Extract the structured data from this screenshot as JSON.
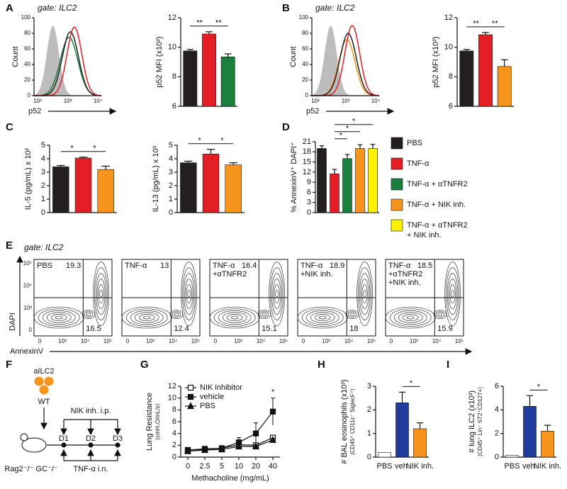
{
  "panels": {
    "letters": [
      "A",
      "B",
      "C",
      "D",
      "E",
      "F",
      "G",
      "H",
      "I"
    ],
    "gate": "gate: ILC2",
    "hist": {
      "ylabel": "Count",
      "xlabel": "p52",
      "yticks": [
        "0",
        "20",
        "40",
        "60",
        "80",
        "100"
      ],
      "xticks": [
        "10²",
        "10³",
        "10⁴"
      ]
    },
    "legend": [
      {
        "label": [
          "PBS"
        ],
        "color": "#231f20"
      },
      {
        "label": [
          "TNF-α"
        ],
        "color": "#e31e24"
      },
      {
        "label": [
          "TNF-α + αTNFR2"
        ],
        "color": "#1b7f3e"
      },
      {
        "label": [
          "TNF-α + NIK inh."
        ],
        "color": "#f7941d"
      },
      {
        "label": [
          "TNF-α + αTNFR2",
          "+ NIK inh."
        ],
        "color": "#fff200"
      }
    ],
    "flow": {
      "ylabel": "DAPI",
      "xlabel": "AnnexinV",
      "yticks": [
        "0",
        "10³",
        "10⁴",
        "10⁵"
      ],
      "xticks": [
        "0",
        "10³",
        "10⁴",
        "10⁵"
      ],
      "plots": [
        {
          "label": [
            "PBS"
          ],
          "ur": "19.3",
          "lr": "16.5"
        },
        {
          "label": [
            "TNF-α"
          ],
          "ur": "13",
          "lr": "12.4"
        },
        {
          "label": [
            "TNF-α",
            "+αTNFR2"
          ],
          "ur": "16.4",
          "lr": "15.1"
        },
        {
          "label": [
            "TNF-α",
            "+NIK inh."
          ],
          "ur": "18.9",
          "lr": "18"
        },
        {
          "label": [
            "TNF-α",
            "+αTNFR2",
            "+NIK inh."
          ],
          "ur": "18.5",
          "lr": "15.9"
        }
      ]
    },
    "schematic": {
      "cells": "aILC2",
      "donor": "WT",
      "ip": "NIK inh. i.p.",
      "days": [
        "D1",
        "D2",
        "D3"
      ],
      "host": "Rag2⁻/⁻ GC⁻/⁻",
      "in": "TNF-α i.n."
    }
  },
  "chart_data": [
    {
      "type": "bar",
      "ylabel": [
        "p52 MFI (x10²)"
      ],
      "values": [
        9.75,
        10.9,
        9.35
      ],
      "errors": [
        0.1,
        0.15,
        0.2
      ],
      "colors": [
        "#231f20",
        "#e31e24",
        "#1b7f3e"
      ],
      "ylim": [
        6,
        12
      ],
      "yticks": [
        6,
        8,
        10,
        12
      ],
      "comparisons": [
        {
          "pair": [
            0,
            1
          ],
          "label": "**"
        },
        {
          "pair": [
            1,
            2
          ],
          "label": "**"
        }
      ]
    },
    {
      "type": "bar",
      "ylabel": [
        "p52 MFI (x10²)"
      ],
      "values": [
        9.75,
        10.85,
        8.7
      ],
      "errors": [
        0.1,
        0.15,
        0.45
      ],
      "colors": [
        "#231f20",
        "#e31e24",
        "#f7941d"
      ],
      "ylim": [
        6,
        12
      ],
      "yticks": [
        6,
        8,
        10,
        12
      ],
      "comparisons": [
        {
          "pair": [
            0,
            1
          ],
          "label": "**"
        },
        {
          "pair": [
            1,
            2
          ],
          "label": "**"
        }
      ]
    },
    {
      "type": "bar",
      "ylabel": [
        "IL-5 (pg/mL) x 10²"
      ],
      "values": [
        3.4,
        4.05,
        3.2
      ],
      "errors": [
        0.1,
        0.07,
        0.25
      ],
      "colors": [
        "#231f20",
        "#e31e24",
        "#f7941d"
      ],
      "ylim": [
        0,
        5
      ],
      "yticks": [
        0,
        1,
        2,
        3,
        4,
        5
      ],
      "comparisons": [
        {
          "pair": [
            0,
            1
          ],
          "label": "*"
        },
        {
          "pair": [
            1,
            2
          ],
          "label": "*"
        }
      ]
    },
    {
      "type": "bar",
      "ylabel": [
        "IL-13 (pg/mL) x 10²"
      ],
      "values": [
        3.7,
        4.35,
        3.55
      ],
      "errors": [
        0.12,
        0.35,
        0.15
      ],
      "colors": [
        "#231f20",
        "#e31e24",
        "#f7941d"
      ],
      "ylim": [
        0,
        5
      ],
      "yticks": [
        0,
        1,
        2,
        3,
        4,
        5
      ],
      "comparisons": [
        {
          "pair": [
            0,
            1
          ],
          "label": "*"
        },
        {
          "pair": [
            1,
            2
          ],
          "label": "*"
        }
      ]
    },
    {
      "type": "bar",
      "ylabel": [
        "% AnnexinV⁺ DAPI⁺"
      ],
      "values": [
        19,
        11.5,
        16,
        19,
        19
      ],
      "errors": [
        0.8,
        1.3,
        1.2,
        1.1,
        1.2
      ],
      "colors": [
        "#231f20",
        "#e31e24",
        "#1b7f3e",
        "#f7941d",
        "#fff200"
      ],
      "ylim": [
        0,
        21
      ],
      "yticks": [
        0,
        3,
        6,
        9,
        12,
        15,
        18,
        21
      ],
      "comparisons": [
        {
          "pair": [
            1,
            2
          ],
          "label": "*"
        },
        {
          "pair": [
            1,
            3
          ],
          "label": "*"
        },
        {
          "pair": [
            1,
            4
          ],
          "label": "*"
        }
      ]
    },
    {
      "type": "line",
      "ylabel": [
        "Lung Resistance",
        "(cmH₂O/mL/s)"
      ],
      "xlabel": "Methacholine (mg/mL)",
      "categories": [
        "0",
        "2.5",
        "5",
        "10",
        "20",
        "40"
      ],
      "ylim": [
        0,
        12
      ],
      "yticks": [
        0,
        2,
        4,
        6,
        8,
        10,
        12
      ],
      "series": [
        {
          "name": "NIK inhibitor",
          "marker": "open-square",
          "values": [
            1.2,
            1.3,
            1.5,
            2.1,
            2.0,
            3.3
          ],
          "errors": [
            0.3,
            0.3,
            0.3,
            0.4,
            0.4,
            0.4
          ]
        },
        {
          "name": "vehicle",
          "marker": "square",
          "values": [
            1.2,
            1.4,
            1.5,
            2.5,
            4.0,
            7.7
          ],
          "errors": [
            0.4,
            0.3,
            0.4,
            0.8,
            1.8,
            2.3
          ]
        },
        {
          "name": "PBS",
          "marker": "triangle",
          "values": [
            1.0,
            1.2,
            1.3,
            1.8,
            1.8,
            2.9
          ],
          "errors": [
            0.2,
            0.2,
            0.2,
            0.3,
            0.3,
            0.3
          ]
        }
      ],
      "comparisons": [
        {
          "at": 5,
          "label": "*"
        }
      ]
    },
    {
      "type": "bar",
      "ylabel": [
        "# BAL eosinophils (x10³)",
        "(CD45⁺ CD11c⁻ SiglecF⁺)"
      ],
      "categories": [
        "PBS",
        "veh.",
        "NIK inh."
      ],
      "values": [
        0.2,
        2.3,
        1.2
      ],
      "errors": [
        0,
        0.45,
        0.25
      ],
      "colors": [
        "#ffffff",
        "#1f3c9c",
        "#f7941d"
      ],
      "ylim": [
        0,
        3
      ],
      "yticks": [
        0,
        1,
        2,
        3
      ],
      "comparisons": [
        {
          "pair": [
            1,
            2
          ],
          "label": "*"
        }
      ]
    },
    {
      "type": "bar",
      "ylabel": [
        "# lung ILC2 (x10³)",
        "(CD45⁺ Lin⁻ ST2⁺CD127+)"
      ],
      "categories": [
        "PBS",
        "veh.",
        "NIK inh."
      ],
      "values": [
        0.15,
        4.3,
        2.2
      ],
      "errors": [
        0,
        0.9,
        0.5
      ],
      "colors": [
        "#ffffff",
        "#1f3c9c",
        "#f7941d"
      ],
      "ylim": [
        0,
        6
      ],
      "yticks": [
        0,
        2,
        4,
        6
      ],
      "comparisons": [
        {
          "pair": [
            1,
            2
          ],
          "label": "*"
        }
      ]
    }
  ]
}
